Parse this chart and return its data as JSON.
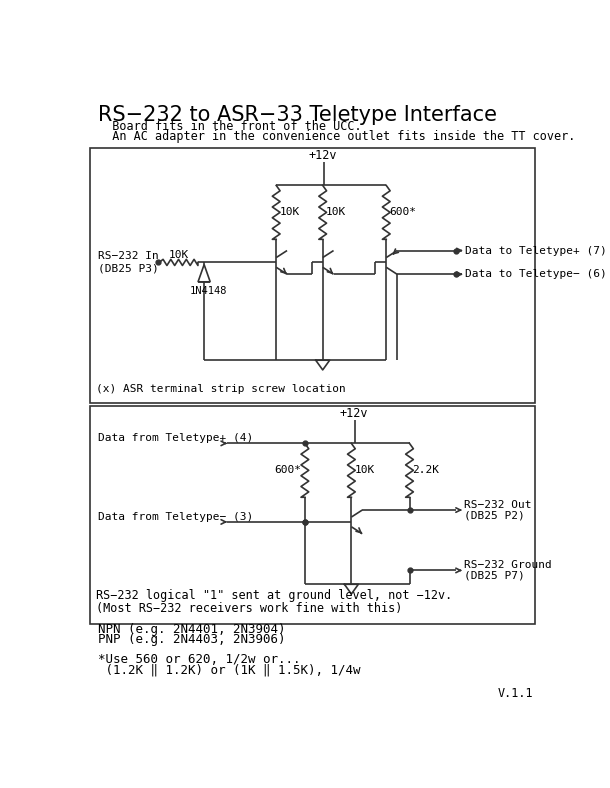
{
  "title": "RS−232 to ASR−33 Teletype Interface",
  "subtitle1": "  Board fits in the front of the UCC.",
  "subtitle2": "  An AC adapter in the convenience outlet fits inside the TT cover.",
  "bg_color": "#ffffff",
  "line_color": "#333333",
  "text_color": "#000000",
  "version": "V.1.1",
  "footer_lines": [
    "NPN (e.g. 2N4401, 2N3904)",
    "PNP (e.g. 2N4403, 2N3906)",
    "",
    "*Use 560 or 620, 1/2w or...",
    " (1.2K ‖ 1.2K) or (1K ‖ 1.5K), 1/4w"
  ],
  "box1_note": "(x) ASR terminal strip screw location",
  "box2_note1": "RS−232 logical \"1\" sent at ground level, not −12v.",
  "box2_note2": "(Most RS−232 receivers work fine with this)"
}
